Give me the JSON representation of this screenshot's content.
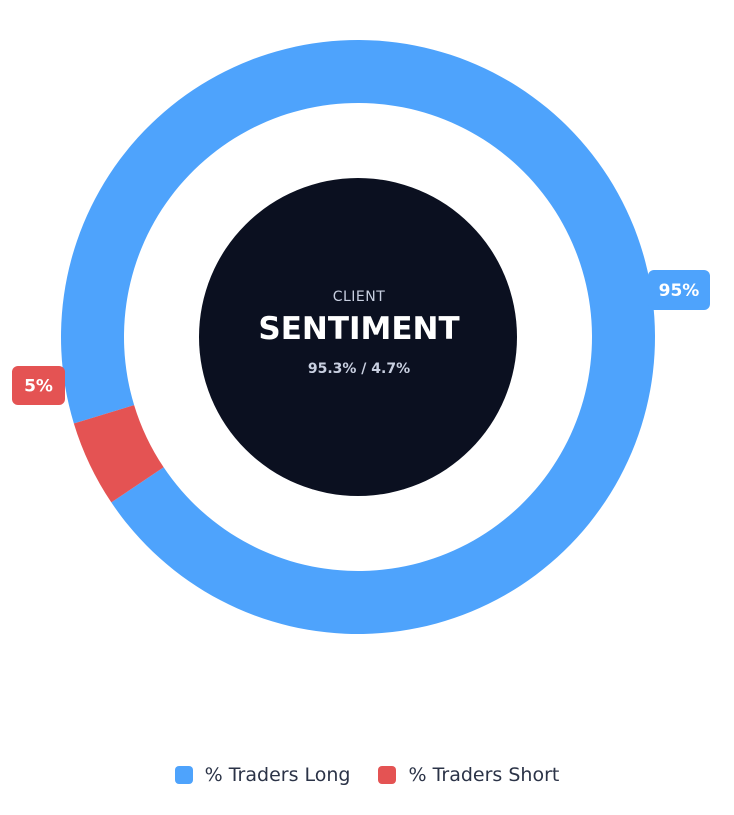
{
  "chart_data": {
    "type": "pie",
    "variant": "donut",
    "categories": [
      "% Traders Long",
      "% Traders Short"
    ],
    "values": [
      95.3,
      4.7
    ],
    "data_labels": [
      "95%",
      "5%"
    ],
    "colors": [
      "#4ea3fc",
      "#e45353"
    ],
    "center": {
      "eyebrow": "CLIENT",
      "title": "SENTIMENT",
      "subtitle": "95.3% / 4.7%"
    },
    "legend_position": "bottom"
  }
}
